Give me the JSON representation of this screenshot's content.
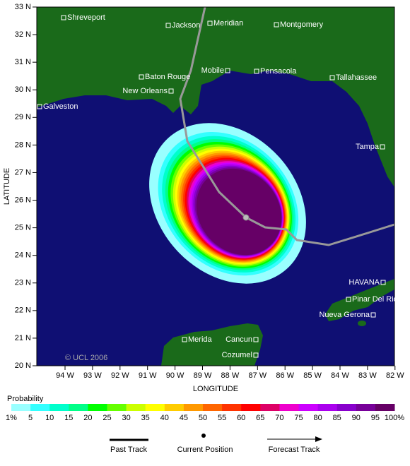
{
  "map": {
    "y_axis_label": "LATITUDE",
    "x_axis_label": "LONGITUDE",
    "lat_ticks": [
      "20 N",
      "21 N",
      "22 N",
      "23 N",
      "24 N",
      "25 N",
      "26 N",
      "27 N",
      "28 N",
      "29 N",
      "30 N",
      "31 N",
      "32 N",
      "33 N"
    ],
    "lon_ticks": [
      "94 W",
      "93 W",
      "92 W",
      "91 W",
      "90 W",
      "89 W",
      "88 W",
      "87 W",
      "86 W",
      "85 W",
      "84 W",
      "83 W",
      "82 W"
    ],
    "cities": [
      "Shreveport",
      "Jackson",
      "Meridian",
      "Montgomery",
      "Baton Rouge",
      "Mobile",
      "Pensacola",
      "Tallahassee",
      "New Orleans",
      "Galveston",
      "Tampa",
      "HAVANA",
      "Pinar Del Rio",
      "Nueva Gerona",
      "Merida",
      "Cancun",
      "Cozumel"
    ],
    "credit": "© UCL 2006"
  },
  "legend": {
    "title": "Probability",
    "labels": [
      "1%",
      "5",
      "10",
      "15",
      "20",
      "25",
      "30",
      "35",
      "40",
      "45",
      "50",
      "55",
      "60",
      "65",
      "70",
      "75",
      "80",
      "85",
      "90",
      "95",
      "100%"
    ],
    "colors": [
      "#99ffff",
      "#33ffff",
      "#00ffcc",
      "#00ff88",
      "#00ff00",
      "#66ff00",
      "#ccff00",
      "#ffff00",
      "#ffcc00",
      "#ff9900",
      "#ff6600",
      "#ff3300",
      "#ff0000",
      "#dd0066",
      "#ee00cc",
      "#cc00ff",
      "#aa00ee",
      "#8800cc",
      "#770099",
      "#660066"
    ]
  },
  "track_legend": {
    "past": "Past Track",
    "current": "Current Position",
    "forecast": "Forecast Track"
  }
}
